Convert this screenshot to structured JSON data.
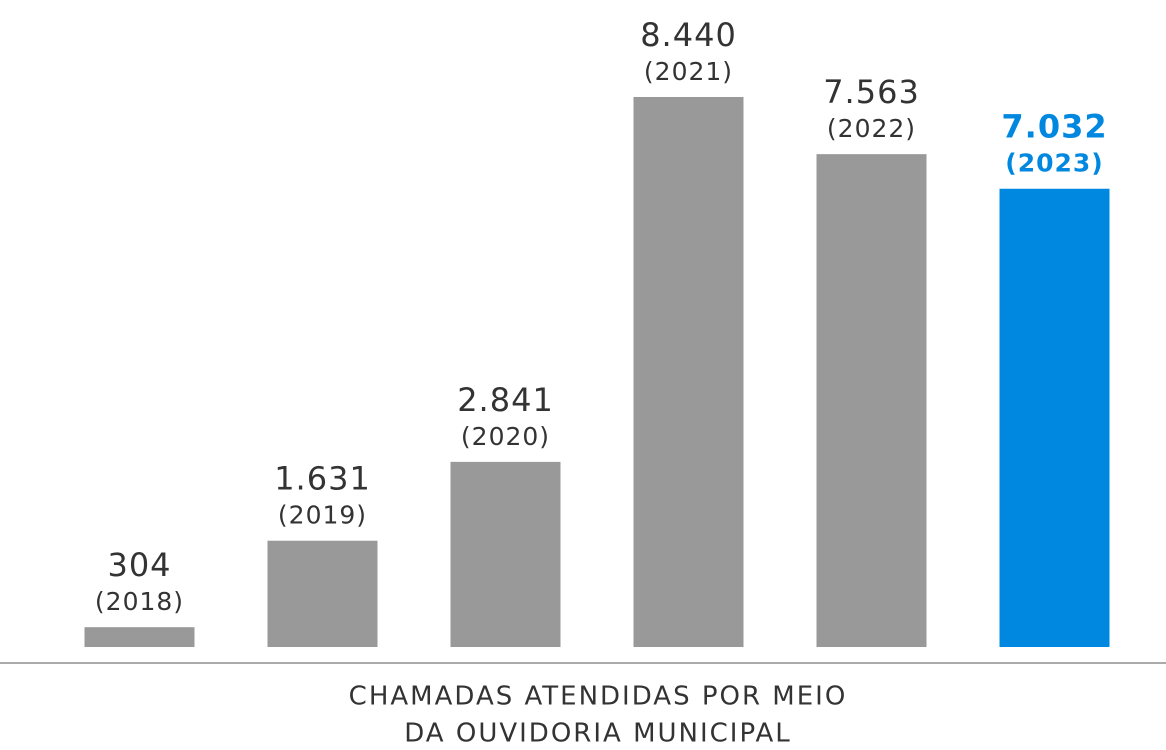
{
  "chart_data": {
    "type": "bar",
    "title_lines": [
      "CHAMADAS ATENDIDAS POR MEIO",
      "DA OUVIDORIA MUNICIPAL"
    ],
    "categories": [
      "(2018)",
      "(2019)",
      "(2020)",
      "(2021)",
      "(2022)",
      "(2023)"
    ],
    "values": [
      304,
      1631,
      2841,
      8440,
      7563,
      7032
    ],
    "value_labels": [
      "304",
      "1.631",
      "2.841",
      "8.440",
      "7.563",
      "7.032"
    ],
    "colors": [
      "#999999",
      "#999999",
      "#999999",
      "#999999",
      "#999999",
      "#0088e0"
    ],
    "highlight_index": 5,
    "ylim": [
      0,
      9000
    ]
  }
}
